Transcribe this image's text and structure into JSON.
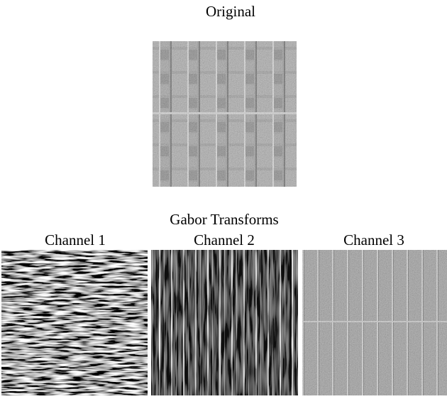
{
  "figure": {
    "original": {
      "label": "Original"
    },
    "transforms": {
      "title": "Gabor Transforms",
      "channels": [
        "Channel 1",
        "Channel 2",
        "Channel 3"
      ]
    }
  }
}
